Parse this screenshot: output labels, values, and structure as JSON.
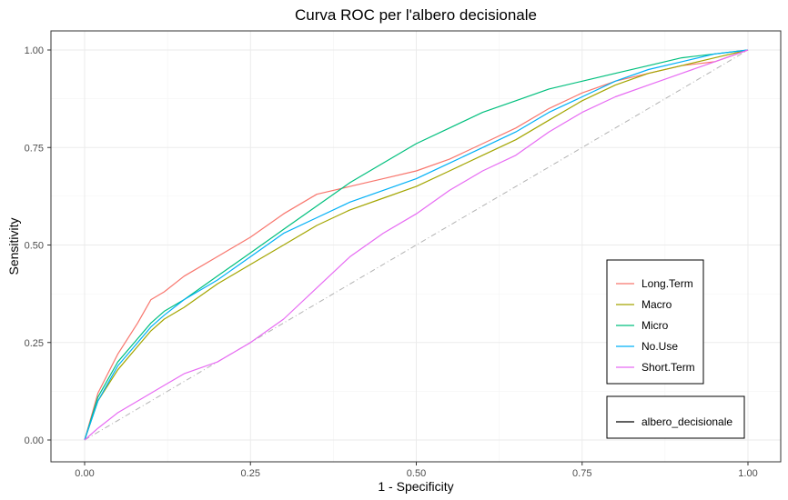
{
  "chart_data": {
    "type": "line",
    "title": "Curva ROC per l'albero decisionale",
    "xlabel": "1 - Specificity",
    "ylabel": "Sensitivity",
    "xlim": [
      0,
      1
    ],
    "ylim": [
      0,
      1
    ],
    "x_ticks": [
      "0.00",
      "0.25",
      "0.50",
      "0.75",
      "1.00"
    ],
    "y_ticks": [
      "0.00",
      "0.25",
      "0.50",
      "0.75",
      "1.00"
    ],
    "grid": true,
    "reference_line": "diagonal (dash-dot)",
    "legend_placement": "right, inside plot",
    "series": [
      {
        "name": "Long.Term",
        "color": "#F8766D",
        "x": [
          0,
          0.02,
          0.05,
          0.08,
          0.1,
          0.12,
          0.15,
          0.2,
          0.25,
          0.3,
          0.35,
          0.4,
          0.45,
          0.5,
          0.55,
          0.6,
          0.65,
          0.7,
          0.75,
          0.8,
          0.85,
          0.9,
          0.95,
          1.0
        ],
        "y": [
          0,
          0.12,
          0.22,
          0.3,
          0.36,
          0.38,
          0.42,
          0.47,
          0.52,
          0.58,
          0.63,
          0.65,
          0.67,
          0.69,
          0.72,
          0.76,
          0.8,
          0.85,
          0.89,
          0.92,
          0.94,
          0.96,
          0.97,
          1.0
        ]
      },
      {
        "name": "Macro",
        "color": "#A3A500",
        "x": [
          0,
          0.02,
          0.05,
          0.08,
          0.1,
          0.12,
          0.15,
          0.2,
          0.25,
          0.3,
          0.35,
          0.4,
          0.45,
          0.5,
          0.55,
          0.6,
          0.65,
          0.7,
          0.75,
          0.8,
          0.85,
          0.9,
          0.95,
          1.0
        ],
        "y": [
          0,
          0.1,
          0.18,
          0.24,
          0.28,
          0.31,
          0.34,
          0.4,
          0.45,
          0.5,
          0.55,
          0.59,
          0.62,
          0.65,
          0.69,
          0.73,
          0.77,
          0.82,
          0.87,
          0.91,
          0.94,
          0.96,
          0.98,
          1.0
        ]
      },
      {
        "name": "Micro",
        "color": "#00BF7D",
        "x": [
          0,
          0.02,
          0.05,
          0.08,
          0.1,
          0.12,
          0.15,
          0.2,
          0.25,
          0.3,
          0.35,
          0.4,
          0.45,
          0.5,
          0.55,
          0.6,
          0.65,
          0.7,
          0.75,
          0.8,
          0.85,
          0.9,
          0.95,
          1.0
        ],
        "y": [
          0,
          0.11,
          0.2,
          0.26,
          0.3,
          0.33,
          0.36,
          0.42,
          0.48,
          0.54,
          0.6,
          0.66,
          0.71,
          0.76,
          0.8,
          0.84,
          0.87,
          0.9,
          0.92,
          0.94,
          0.96,
          0.98,
          0.99,
          1.0
        ]
      },
      {
        "name": "No.Use",
        "color": "#00B0F6",
        "x": [
          0,
          0.02,
          0.05,
          0.08,
          0.1,
          0.12,
          0.15,
          0.2,
          0.25,
          0.3,
          0.35,
          0.4,
          0.45,
          0.5,
          0.55,
          0.6,
          0.65,
          0.7,
          0.75,
          0.8,
          0.85,
          0.9,
          0.95,
          1.0
        ],
        "y": [
          0,
          0.1,
          0.19,
          0.25,
          0.29,
          0.32,
          0.36,
          0.41,
          0.47,
          0.53,
          0.57,
          0.61,
          0.64,
          0.67,
          0.71,
          0.75,
          0.79,
          0.84,
          0.88,
          0.92,
          0.95,
          0.97,
          0.99,
          1.0
        ]
      },
      {
        "name": "Short.Term",
        "color": "#E76BF3",
        "x": [
          0,
          0.02,
          0.05,
          0.08,
          0.1,
          0.12,
          0.15,
          0.2,
          0.25,
          0.3,
          0.35,
          0.4,
          0.45,
          0.5,
          0.55,
          0.6,
          0.65,
          0.7,
          0.75,
          0.8,
          0.85,
          0.9,
          0.95,
          1.0
        ],
        "y": [
          0,
          0.03,
          0.07,
          0.1,
          0.12,
          0.14,
          0.17,
          0.2,
          0.25,
          0.31,
          0.39,
          0.47,
          0.53,
          0.58,
          0.64,
          0.69,
          0.73,
          0.79,
          0.84,
          0.88,
          0.91,
          0.94,
          0.97,
          1.0
        ]
      }
    ],
    "secondary_legend": {
      "label": "albero_decisionale",
      "color": "#000000"
    }
  }
}
